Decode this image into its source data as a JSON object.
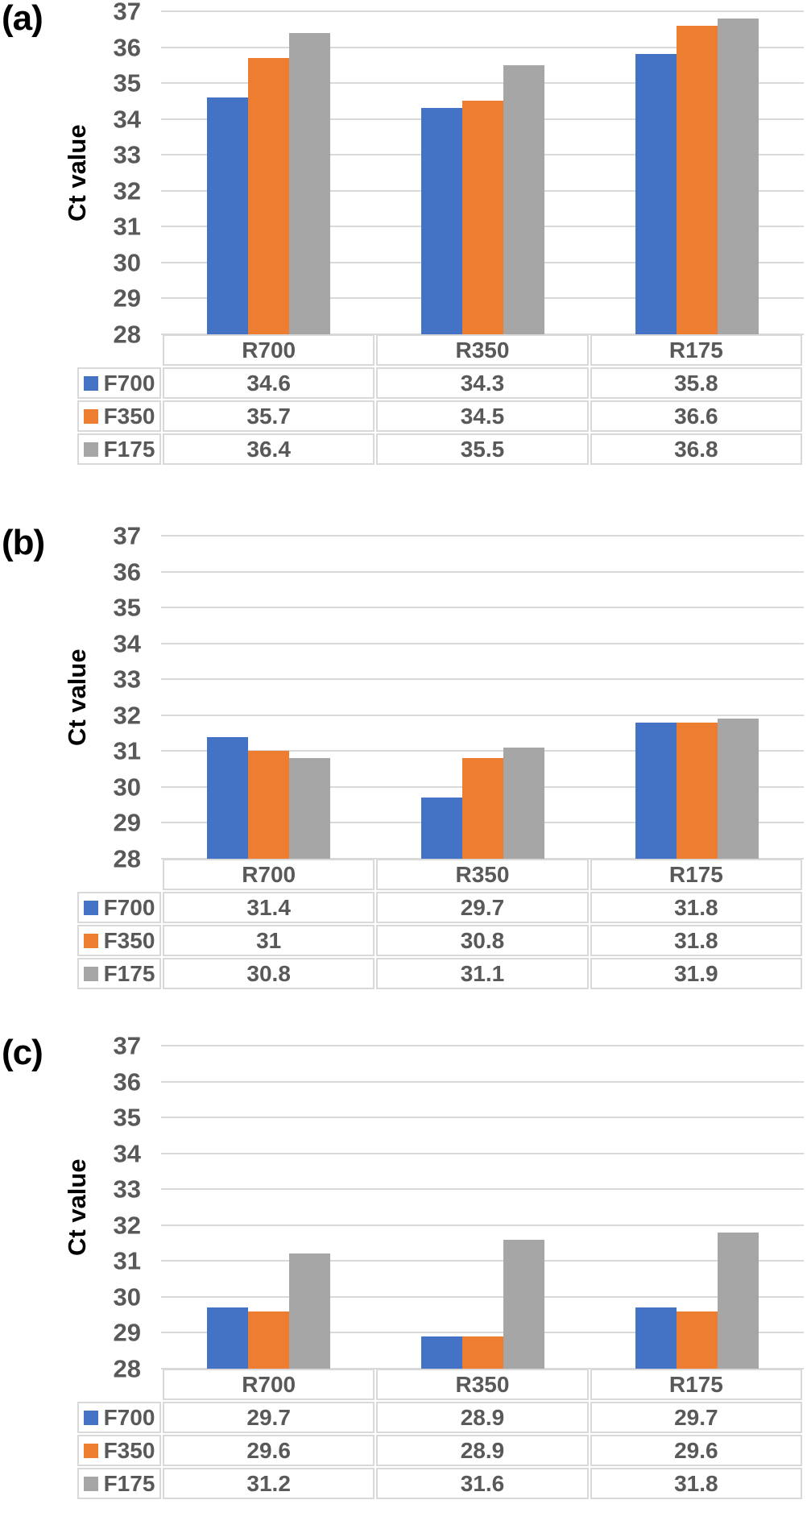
{
  "figure": {
    "y_axis_title": "Ct value",
    "panel_count": 3,
    "colors": {
      "series_blue": "#4472C4",
      "series_orange": "#ED7D31",
      "series_gray": "#A6A6A6",
      "gridline": "#D9D9D9",
      "tick_text": "#595959",
      "table_text": "#595959",
      "table_border": "#D9D9D9",
      "panel_label_text": "#000000"
    }
  },
  "chart_data": [
    {
      "type": "bar",
      "panel_id": "a",
      "panel_label": "(a)",
      "ylabel": "Ct value",
      "ylim": [
        28,
        37
      ],
      "y_step": 1,
      "grid": true,
      "legend_position": "table-left",
      "categories": [
        "R700",
        "R350",
        "R175"
      ],
      "series": [
        {
          "name": "F700",
          "color": "#4472C4",
          "values": [
            34.6,
            34.3,
            35.8
          ]
        },
        {
          "name": "F350",
          "color": "#ED7D31",
          "values": [
            35.7,
            34.5,
            36.6
          ]
        },
        {
          "name": "F175",
          "color": "#A6A6A6",
          "values": [
            36.4,
            35.5,
            36.8
          ]
        }
      ]
    },
    {
      "type": "bar",
      "panel_id": "b",
      "panel_label": "(b)",
      "ylabel": "Ct value",
      "ylim": [
        28,
        37
      ],
      "y_step": 1,
      "grid": true,
      "legend_position": "table-left",
      "categories": [
        "R700",
        "R350",
        "R175"
      ],
      "series": [
        {
          "name": "F700",
          "color": "#4472C4",
          "values": [
            31.4,
            29.7,
            31.8
          ]
        },
        {
          "name": "F350",
          "color": "#ED7D31",
          "values": [
            31,
            30.8,
            31.8
          ]
        },
        {
          "name": "F175",
          "color": "#A6A6A6",
          "values": [
            30.8,
            31.1,
            31.9
          ]
        }
      ]
    },
    {
      "type": "bar",
      "panel_id": "c",
      "panel_label": "(c)",
      "ylabel": "Ct value",
      "ylim": [
        28,
        37
      ],
      "y_step": 1,
      "grid": true,
      "legend_position": "table-left",
      "categories": [
        "R700",
        "R350",
        "R175"
      ],
      "series": [
        {
          "name": "F700",
          "color": "#4472C4",
          "values": [
            29.7,
            28.9,
            29.7
          ]
        },
        {
          "name": "F350",
          "color": "#ED7D31",
          "values": [
            29.6,
            28.9,
            29.6
          ]
        },
        {
          "name": "F175",
          "color": "#A6A6A6",
          "values": [
            31.2,
            31.6,
            31.8
          ]
        }
      ]
    }
  ]
}
